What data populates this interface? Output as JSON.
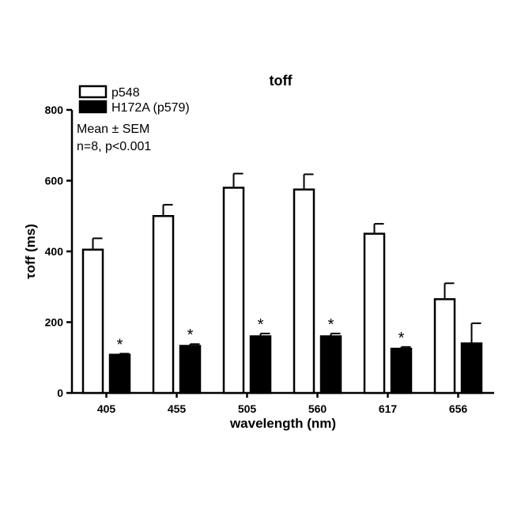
{
  "chart_data": {
    "type": "bar",
    "title": "toff",
    "xlabel": "wavelength (nm)",
    "ylabel": "τoff (ms)",
    "categories": [
      "405",
      "455",
      "505",
      "560",
      "617",
      "656"
    ],
    "ylim": [
      0,
      800
    ],
    "yticks": [
      0,
      200,
      400,
      600,
      800
    ],
    "series": [
      {
        "name": "p548",
        "fill": "#ffffff",
        "values": [
          405,
          500,
          580,
          575,
          450,
          265
        ],
        "errors": [
          32,
          32,
          40,
          43,
          28,
          45
        ]
      },
      {
        "name": "H172A (p579)",
        "fill": "#000000",
        "values": [
          108,
          133,
          160,
          160,
          125,
          140
        ],
        "errors": [
          3,
          5,
          8,
          8,
          5,
          57
        ]
      }
    ],
    "significance_marker": "*",
    "significant_categories": [
      "405",
      "455",
      "505",
      "560",
      "617"
    ],
    "annotations": [
      "Mean ± SEM",
      "n=8, p<0.001"
    ],
    "legend_position": "top-left",
    "grid": false
  }
}
